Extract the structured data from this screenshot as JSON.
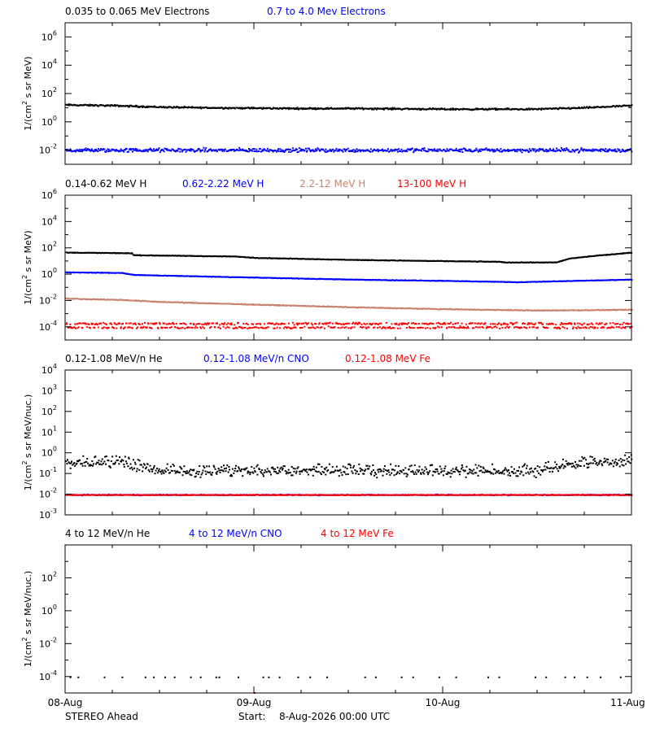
{
  "chart_data": [
    {
      "type": "scatter",
      "panel": "electrons",
      "ylabel": "1/(cm^2 s sr MeV)",
      "y_scale": "log",
      "ylim_log10": [
        -3,
        7
      ],
      "tick_labels": [
        "10^6",
        "10^4",
        "10^2",
        "10^0",
        "10^-2"
      ],
      "tick_exponents": [
        6,
        4,
        2,
        0,
        -2
      ],
      "legend": [
        {
          "label": "0.035 to 0.065 MeV Electrons",
          "color": "#000000"
        },
        {
          "label": "0.7 to 4.0 Mev Electrons",
          "color": "#0000ff"
        }
      ],
      "series": [
        {
          "name": "0.035 to 0.065 MeV Electrons",
          "color": "#000000",
          "x_days": [
            0,
            0.25,
            0.5,
            0.75,
            1.0,
            1.25,
            1.5,
            1.75,
            2.0,
            2.25,
            2.5,
            2.75,
            3.0
          ],
          "log10_y": [
            1.25,
            1.2,
            1.1,
            1.05,
            1.02,
            1.0,
            1.0,
            0.98,
            0.95,
            0.95,
            0.95,
            1.05,
            1.2
          ],
          "scatter": 0.08
        },
        {
          "name": "0.7 to 4.0 Mev Electrons",
          "color": "#0000ff",
          "x_days": [
            0,
            1.5,
            3.0
          ],
          "log10_y": [
            -1.95,
            -1.95,
            -1.95
          ],
          "scatter": 0.2
        }
      ]
    },
    {
      "type": "scatter",
      "panel": "protons",
      "ylabel": "1/(cm^2 s sr MeV)",
      "y_scale": "log",
      "ylim_log10": [
        -5,
        6
      ],
      "tick_labels": [
        "10^6",
        "10^4",
        "10^2",
        "10^0",
        "10^-2",
        "10^-4"
      ],
      "tick_exponents": [
        6,
        4,
        2,
        0,
        -2,
        -4
      ],
      "legend": [
        {
          "label": "0.14-0.62 MeV H",
          "color": "#000000"
        },
        {
          "label": "0.62-2.22 MeV H",
          "color": "#0000ff"
        },
        {
          "label": "2.2-12 MeV H",
          "color": "#c8826e"
        },
        {
          "label": "13-100 MeV H",
          "color": "#ff0000"
        }
      ],
      "series": [
        {
          "name": "0.14-0.62 MeV H",
          "color": "#000000",
          "x_days": [
            0,
            0.35,
            0.36,
            0.9,
            1.0,
            1.5,
            2.0,
            2.3,
            2.33,
            2.6,
            2.67,
            2.8,
            3.0
          ],
          "log10_y": [
            1.7,
            1.65,
            1.5,
            1.4,
            1.3,
            1.15,
            1.05,
            1.0,
            0.95,
            0.95,
            1.25,
            1.45,
            1.7
          ],
          "scatter": 0.03
        },
        {
          "name": "0.62-2.22 MeV H",
          "color": "#0000ff",
          "x_days": [
            0,
            0.3,
            0.36,
            1.0,
            1.5,
            2.0,
            2.4,
            2.7,
            3.0
          ],
          "log10_y": [
            0.2,
            0.15,
            0.0,
            -0.2,
            -0.35,
            -0.45,
            -0.55,
            -0.45,
            -0.35
          ],
          "scatter": 0.03
        },
        {
          "name": "2.2-12 MeV H",
          "color": "#c8826e",
          "x_days": [
            0,
            0.3,
            0.5,
            1.0,
            1.5,
            2.0,
            2.5,
            3.0
          ],
          "log10_y": [
            -1.8,
            -1.9,
            -2.05,
            -2.25,
            -2.45,
            -2.6,
            -2.7,
            -2.65
          ],
          "scatter": 0.04
        },
        {
          "name": "13-100 MeV H",
          "color": "#ff0000",
          "x_days": [
            0,
            3.0
          ],
          "log10_y": [
            -3.85,
            -3.85
          ],
          "scatter": 0.3
        }
      ]
    },
    {
      "type": "scatter",
      "panel": "low-energy-ions",
      "ylabel": "1/(cm^2 s sr MeV/nuc.)",
      "y_scale": "log",
      "ylim_log10": [
        -3,
        4
      ],
      "tick_labels": [
        "10^4",
        "10^3",
        "10^2",
        "10^1",
        "10^0",
        "10^-1",
        "10^-2",
        "10^-3"
      ],
      "tick_exponents": [
        4,
        3,
        2,
        1,
        0,
        -1,
        -2,
        -3
      ],
      "legend": [
        {
          "label": "0.12-1.08 MeV/n He",
          "color": "#000000"
        },
        {
          "label": "0.12-1.08 MeV/n CNO",
          "color": "#0000ff"
        },
        {
          "label": "0.12-1.08 MeV Fe",
          "color": "#ff0000"
        }
      ],
      "series": [
        {
          "name": "0.12-1.08 MeV/n He",
          "color": "#000000",
          "x_days": [
            0,
            0.3,
            0.5,
            1.0,
            1.5,
            2.0,
            2.5,
            2.7,
            3.0
          ],
          "log10_y": [
            -0.5,
            -0.5,
            -0.9,
            -0.9,
            -0.9,
            -0.9,
            -0.9,
            -0.55,
            -0.4
          ],
          "scatter": 0.3
        },
        {
          "name": "0.12-1.08 MeV/n CNO",
          "color": "#0000ff",
          "x_days": [
            0,
            3.0
          ],
          "log10_y": [
            -2.0,
            -2.0
          ],
          "scatter": 0.03
        },
        {
          "name": "0.12-1.08 MeV Fe",
          "color": "#ff0000",
          "x_days": [
            0,
            3.0
          ],
          "log10_y": [
            -2.0,
            -2.0
          ],
          "scatter": 0.02
        }
      ]
    },
    {
      "type": "scatter",
      "panel": "high-energy-ions",
      "ylabel": "1/(cm^2 s sr MeV/nuc.)",
      "y_scale": "log",
      "ylim_log10": [
        -5,
        4
      ],
      "tick_labels": [
        "10^2",
        "10^0",
        "10^-2",
        "10^-4"
      ],
      "tick_exponents": [
        2,
        0,
        -2,
        -4
      ],
      "legend": [
        {
          "label": "4 to 12 MeV/n He",
          "color": "#000000"
        },
        {
          "label": "4 to 12 MeV/n CNO",
          "color": "#0000ff"
        },
        {
          "label": "4 to 12 MeV Fe",
          "color": "#ff0000"
        }
      ],
      "series": [
        {
          "name": "4 to 12 MeV/n He",
          "color": "#000000",
          "x_days": [
            0,
            3.0
          ],
          "log10_y": [
            -4.0,
            -4.0
          ],
          "scatter": 0.0,
          "sparse": true
        },
        {
          "name": "4 to 12 MeV Fe",
          "color": "#ff0000",
          "x_days": [
            1.0
          ],
          "log10_y": [
            -4.95
          ],
          "scatter": 0.0,
          "single": true
        }
      ]
    }
  ],
  "x_axis": {
    "xlim_days": [
      0,
      3
    ],
    "tick_labels": [
      "08-Aug",
      "09-Aug",
      "10-Aug",
      "11-Aug"
    ]
  },
  "footer": {
    "spacecraft": "STEREO Ahead",
    "start_label": "Start:",
    "start_value": "8-Aug-2026 00:00 UTC"
  }
}
